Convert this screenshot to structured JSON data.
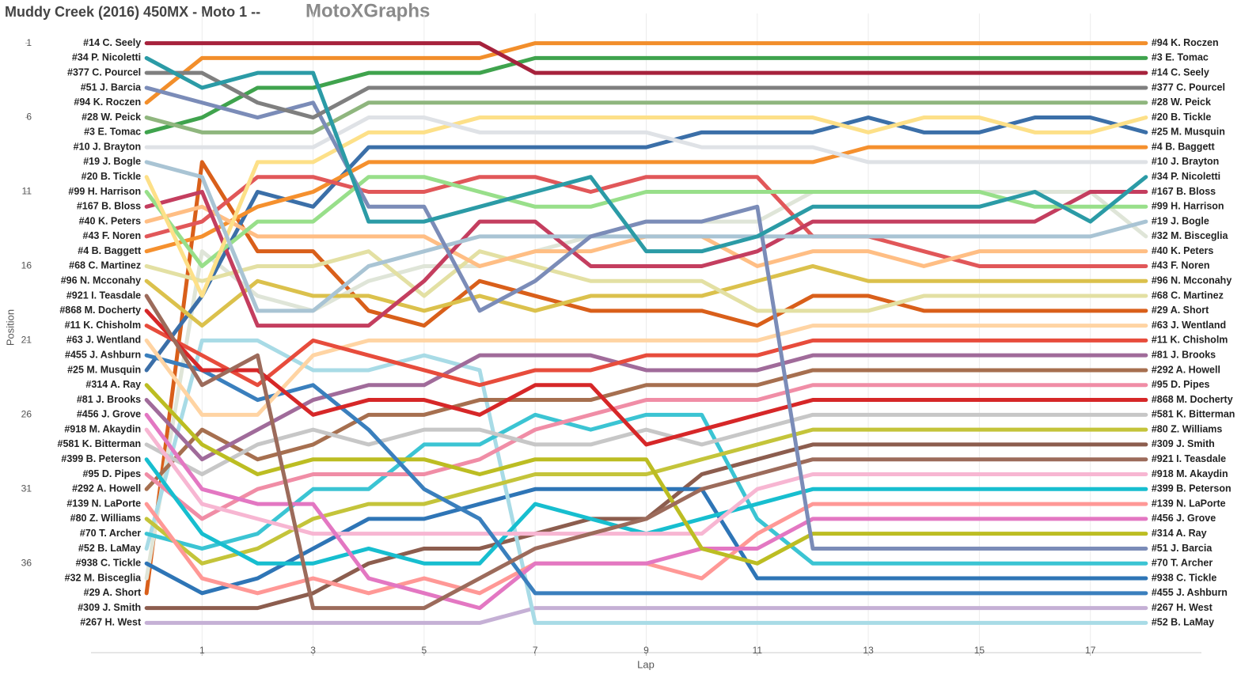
{
  "chart_data": {
    "type": "line",
    "title": "Muddy Creek (2016) 450MX - Moto 1 --",
    "subtitle": "MotoXGraphs",
    "x_label": "Lap",
    "y_label": "Position",
    "x": [
      0,
      1,
      2,
      3,
      4,
      5,
      6,
      7,
      8,
      9,
      10,
      11,
      12,
      13,
      14,
      15,
      16,
      17,
      18
    ],
    "xlim": [
      -1,
      19
    ],
    "xticks": [
      1,
      3,
      5,
      7,
      9,
      11,
      13,
      15,
      17
    ],
    "ylim": [
      -1,
      42
    ],
    "yticks": [
      1,
      6,
      11,
      16,
      21,
      26,
      31,
      36
    ],
    "y_reversed": true,
    "grid": true,
    "series": [
      {
        "name": "#14 C. Seely",
        "color": "#a6223c",
        "values": [
          1,
          1,
          1,
          1,
          1,
          1,
          1,
          3,
          3,
          3,
          3,
          3,
          3,
          3,
          3,
          3,
          3,
          3,
          3
        ]
      },
      {
        "name": "#34 P. Nicoletti",
        "color": "#2b9ba6",
        "values": [
          2,
          4,
          3,
          3,
          13,
          13,
          12,
          11,
          10,
          15,
          15,
          14,
          12,
          12,
          12,
          12,
          11,
          13,
          10
        ]
      },
      {
        "name": "#377 C. Pourcel",
        "color": "#7f7f7f",
        "values": [
          3,
          3,
          5,
          6,
          4,
          4,
          4,
          4,
          4,
          4,
          4,
          4,
          4,
          4,
          4,
          4,
          4,
          4,
          4
        ]
      },
      {
        "name": "#51 J. Barcia",
        "color": "#7b8cb8",
        "values": [
          4,
          5,
          6,
          5,
          12,
          12,
          19,
          17,
          14,
          13,
          13,
          12,
          35,
          35,
          35,
          35,
          35,
          35,
          35
        ]
      },
      {
        "name": "#94 K. Roczen",
        "color": "#f28e2b",
        "values": [
          5,
          2,
          2,
          2,
          2,
          2,
          2,
          1,
          1,
          1,
          1,
          1,
          1,
          1,
          1,
          1,
          1,
          1,
          1
        ]
      },
      {
        "name": "#28 W. Peick",
        "color": "#8fb67e",
        "values": [
          6,
          7,
          7,
          7,
          5,
          5,
          5,
          5,
          5,
          5,
          5,
          5,
          5,
          5,
          5,
          5,
          5,
          5,
          5
        ]
      },
      {
        "name": "#3 E. Tomac",
        "color": "#3fa34d",
        "values": [
          7,
          6,
          4,
          4,
          3,
          3,
          3,
          2,
          2,
          2,
          2,
          2,
          2,
          2,
          2,
          2,
          2,
          2,
          2
        ]
      },
      {
        "name": "#10 J. Brayton",
        "color": "#dfe2e6",
        "values": [
          8,
          8,
          8,
          8,
          6,
          6,
          7,
          7,
          7,
          7,
          8,
          8,
          8,
          9,
          9,
          9,
          9,
          9,
          9
        ]
      },
      {
        "name": "#19 J. Bogle",
        "color": "#a9c4d4",
        "values": [
          9,
          10,
          19,
          19,
          16,
          15,
          14,
          14,
          14,
          14,
          14,
          14,
          14,
          14,
          14,
          14,
          14,
          14,
          13
        ]
      },
      {
        "name": "#20 B. Tickle",
        "color": "#fde088",
        "values": [
          10,
          18,
          9,
          9,
          7,
          7,
          6,
          6,
          6,
          6,
          6,
          6,
          6,
          7,
          6,
          6,
          7,
          7,
          6
        ]
      },
      {
        "name": "#99 H. Harrison",
        "color": "#98df8a",
        "values": [
          11,
          16,
          13,
          13,
          10,
          10,
          11,
          12,
          12,
          11,
          11,
          11,
          11,
          11,
          11,
          11,
          12,
          12,
          12
        ]
      },
      {
        "name": "#167 B. Bloss",
        "color": "#c43e5f",
        "values": [
          12,
          11,
          20,
          20,
          20,
          17,
          13,
          13,
          16,
          16,
          16,
          15,
          13,
          13,
          13,
          13,
          13,
          11,
          11
        ]
      },
      {
        "name": "#40 K. Peters",
        "color": "#ffbe84",
        "values": [
          13,
          12,
          14,
          14,
          14,
          14,
          16,
          15,
          15,
          14,
          14,
          16,
          15,
          15,
          16,
          15,
          15,
          15,
          15
        ]
      },
      {
        "name": "#43 F. Noren",
        "color": "#e15759",
        "values": [
          14,
          13,
          10,
          10,
          11,
          11,
          10,
          10,
          11,
          10,
          10,
          10,
          14,
          14,
          15,
          16,
          16,
          16,
          16
        ]
      },
      {
        "name": "#4 B. Baggett",
        "color": "#f5902e",
        "values": [
          15,
          14,
          12,
          11,
          9,
          9,
          9,
          9,
          9,
          9,
          9,
          9,
          9,
          8,
          8,
          8,
          8,
          8,
          8
        ]
      },
      {
        "name": "#68 C. Martinez",
        "color": "#e3e0a3",
        "values": [
          16,
          17,
          16,
          16,
          15,
          18,
          15,
          16,
          17,
          17,
          17,
          19,
          19,
          19,
          18,
          18,
          18,
          18,
          18
        ]
      },
      {
        "name": "#96 N. Mcconahy",
        "color": "#dbc14c",
        "values": [
          17,
          20,
          17,
          18,
          18,
          19,
          18,
          19,
          18,
          18,
          18,
          17,
          16,
          17,
          17,
          17,
          17,
          17,
          17
        ]
      },
      {
        "name": "#921 I. Teasdale",
        "color": "#9c6b5b",
        "values": [
          18,
          24,
          22,
          39,
          39,
          39,
          37,
          35,
          34,
          33,
          31,
          30,
          29,
          29,
          29,
          29,
          29,
          29,
          29
        ]
      },
      {
        "name": "#868 M. Docherty",
        "color": "#d62728",
        "values": [
          19,
          23,
          23,
          26,
          25,
          25,
          26,
          24,
          24,
          28,
          27,
          26,
          25,
          25,
          25,
          25,
          25,
          25,
          25
        ]
      },
      {
        "name": "#11 K. Chisholm",
        "color": "#e74c3c",
        "values": [
          20,
          22,
          24,
          21,
          22,
          23,
          24,
          23,
          23,
          22,
          22,
          22,
          21,
          21,
          21,
          21,
          21,
          21,
          21
        ]
      },
      {
        "name": "#63 J. Wentland",
        "color": "#ffd4a3",
        "values": [
          21,
          26,
          26,
          22,
          21,
          21,
          21,
          21,
          21,
          21,
          21,
          21,
          20,
          20,
          20,
          20,
          20,
          20,
          20
        ]
      },
      {
        "name": "#455 J. Ashburn",
        "color": "#3a7fbd",
        "values": [
          22,
          23,
          25,
          24,
          27,
          31,
          33,
          38,
          38,
          38,
          38,
          38,
          38,
          38,
          38,
          38,
          38,
          38,
          38
        ]
      },
      {
        "name": "#25 M. Musquin",
        "color": "#3b6fa8",
        "values": [
          23,
          18,
          11,
          12,
          8,
          8,
          8,
          8,
          8,
          8,
          7,
          7,
          7,
          6,
          7,
          7,
          6,
          6,
          7
        ]
      },
      {
        "name": "#314 A. Ray",
        "color": "#bcbd22",
        "values": [
          24,
          28,
          30,
          29,
          29,
          29,
          30,
          29,
          29,
          29,
          35,
          36,
          34,
          34,
          34,
          34,
          34,
          34,
          34
        ]
      },
      {
        "name": "#81 J. Brooks",
        "color": "#a06b9a",
        "values": [
          25,
          29,
          27,
          25,
          24,
          24,
          22,
          22,
          22,
          23,
          23,
          23,
          22,
          22,
          22,
          22,
          22,
          22,
          22
        ]
      },
      {
        "name": "#456 J. Grove",
        "color": "#e377c2",
        "values": [
          26,
          31,
          32,
          32,
          37,
          38,
          39,
          36,
          36,
          36,
          35,
          35,
          33,
          33,
          33,
          33,
          33,
          33,
          33
        ]
      },
      {
        "name": "#918 M. Akaydin",
        "color": "#f7b6d2",
        "values": [
          27,
          32,
          33,
          34,
          34,
          34,
          34,
          34,
          34,
          34,
          34,
          31,
          30,
          30,
          30,
          30,
          30,
          30,
          30
        ]
      },
      {
        "name": "#581 K. Bitterman",
        "color": "#c7c7c7",
        "values": [
          28,
          30,
          28,
          27,
          28,
          27,
          27,
          28,
          28,
          27,
          28,
          27,
          26,
          26,
          26,
          26,
          26,
          26,
          26
        ]
      },
      {
        "name": "#399 B. Peterson",
        "color": "#17becf",
        "values": [
          29,
          34,
          36,
          36,
          35,
          36,
          36,
          32,
          33,
          34,
          33,
          32,
          31,
          31,
          31,
          31,
          31,
          31,
          31
        ]
      },
      {
        "name": "#95 D. Pipes",
        "color": "#f08da6",
        "values": [
          30,
          33,
          31,
          30,
          30,
          30,
          29,
          27,
          26,
          25,
          25,
          25,
          24,
          24,
          24,
          24,
          24,
          24,
          24
        ]
      },
      {
        "name": "#292 A. Howell",
        "color": "#a66f4f",
        "values": [
          31,
          27,
          29,
          28,
          26,
          26,
          25,
          25,
          25,
          24,
          24,
          24,
          23,
          23,
          23,
          23,
          23,
          23,
          23
        ]
      },
      {
        "name": "#139 N. LaPorte",
        "color": "#ff9896",
        "values": [
          32,
          37,
          38,
          37,
          38,
          37,
          38,
          36,
          36,
          36,
          37,
          34,
          32,
          32,
          32,
          32,
          32,
          32,
          32
        ]
      },
      {
        "name": "#80 Z. Williams",
        "color": "#c4c43a",
        "values": [
          33,
          36,
          35,
          33,
          32,
          32,
          31,
          30,
          30,
          30,
          29,
          28,
          27,
          27,
          27,
          27,
          27,
          27,
          27
        ]
      },
      {
        "name": "#70 T. Archer",
        "color": "#3bc4d3",
        "values": [
          34,
          35,
          34,
          31,
          31,
          28,
          28,
          26,
          27,
          26,
          26,
          33,
          36,
          36,
          36,
          36,
          36,
          36,
          36
        ]
      },
      {
        "name": "#52 B. LaMay",
        "color": "#a8dbe6",
        "values": [
          35,
          21,
          21,
          23,
          23,
          22,
          23,
          40,
          40,
          40,
          40,
          40,
          40,
          40,
          40,
          40,
          40,
          40,
          40
        ]
      },
      {
        "name": "#938 C. Tickle",
        "color": "#2e75b6",
        "values": [
          36,
          38,
          37,
          35,
          33,
          33,
          32,
          31,
          31,
          31,
          31,
          37,
          37,
          37,
          37,
          37,
          37,
          37,
          37
        ]
      },
      {
        "name": "#32 M. Bisceglia",
        "color": "#dfe5d8",
        "values": [
          37,
          15,
          18,
          19,
          17,
          16,
          16,
          15,
          14,
          13,
          13,
          13,
          11,
          11,
          11,
          11,
          11,
          11,
          14
        ]
      },
      {
        "name": "#29 A. Short",
        "color": "#d95f1a",
        "values": [
          38,
          9,
          15,
          15,
          19,
          20,
          17,
          18,
          19,
          19,
          19,
          20,
          18,
          18,
          19,
          19,
          19,
          19,
          19
        ]
      },
      {
        "name": "#309 J. Smith",
        "color": "#8c5d4e",
        "values": [
          39,
          39,
          39,
          38,
          36,
          35,
          35,
          34,
          33,
          33,
          30,
          29,
          28,
          28,
          28,
          28,
          28,
          28,
          28
        ]
      },
      {
        "name": "#267 H. West",
        "color": "#c5b0d5",
        "values": [
          40,
          40,
          40,
          40,
          40,
          40,
          40,
          39,
          39,
          39,
          39,
          39,
          39,
          39,
          39,
          39,
          39,
          39,
          39
        ]
      }
    ]
  }
}
